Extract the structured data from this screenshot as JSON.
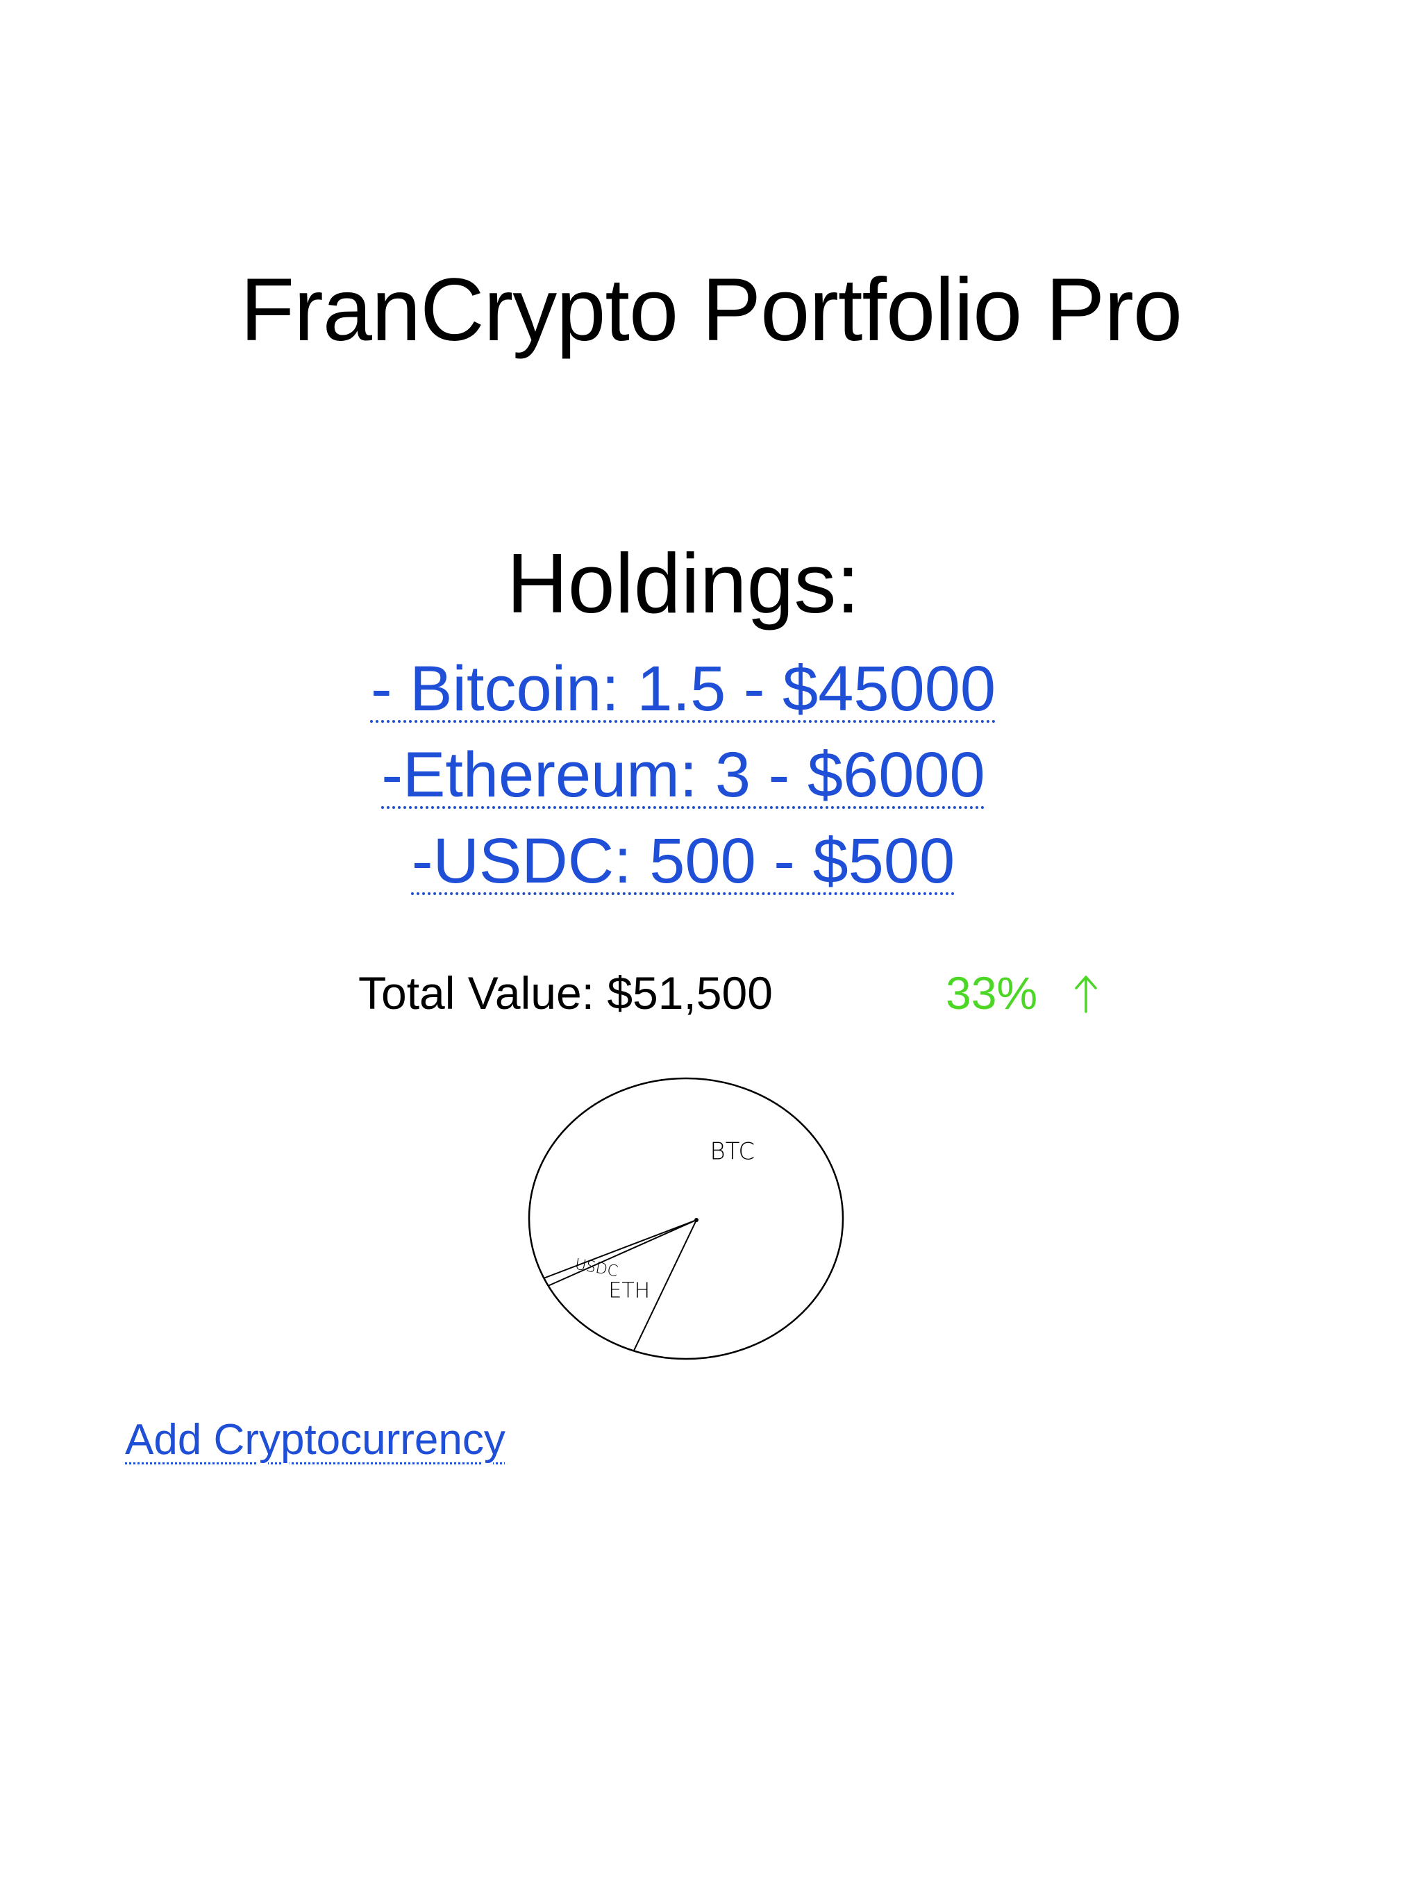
{
  "app": {
    "title": "FranCrypto Portfolio Pro"
  },
  "holdings": {
    "heading": "Holdings:",
    "items": [
      {
        "label": "- Bitcoin: 1.5 - $45000"
      },
      {
        "label": "-Ethereum: 3 - $6000"
      },
      {
        "label": "-USDC: 500 - $500"
      }
    ]
  },
  "summary": {
    "total_label": "Total Value: $51,500",
    "change_label": "33%",
    "change_icon": "arrow-up-icon",
    "change_color": "#4cd626"
  },
  "actions": {
    "add_label": "Add Cryptocurrency"
  },
  "colors": {
    "link": "#1f4fd6",
    "text": "#000000",
    "background": "#ffffff"
  },
  "chart_data": {
    "type": "pie",
    "categories": [
      "BTC",
      "ETH",
      "USDC"
    ],
    "values": [
      45000,
      6000,
      500
    ]
  }
}
